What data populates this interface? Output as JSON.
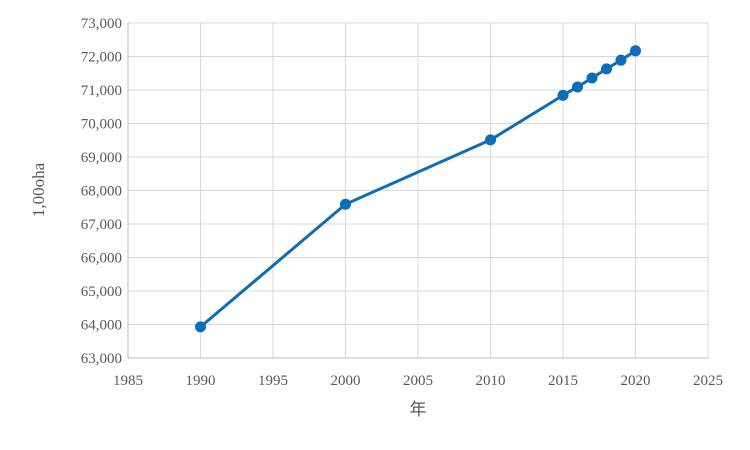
{
  "chart_data": {
    "type": "scatter",
    "title": "",
    "xlabel": "年",
    "ylabel": "1,00oha",
    "xlim": [
      1985,
      2025
    ],
    "ylim": [
      63000,
      73000
    ],
    "x_ticks": [
      "1985",
      "1990",
      "1995",
      "2000",
      "2005",
      "2010",
      "2015",
      "2020",
      "2025"
    ],
    "y_ticks": [
      "63,000",
      "64,000",
      "65,000",
      "66,000",
      "67,000",
      "68,000",
      "69,000",
      "70,000",
      "71,000",
      "72,000",
      "73,000"
    ],
    "grid": true,
    "legend": "none",
    "series": [
      {
        "color": "#0f6cb6",
        "points": [
          {
            "x": 1990,
            "y": 63930
          },
          {
            "x": 2000,
            "y": 67590
          },
          {
            "x": 2010,
            "y": 69510
          },
          {
            "x": 2015,
            "y": 70840
          },
          {
            "x": 2016,
            "y": 71090
          },
          {
            "x": 2017,
            "y": 71360
          },
          {
            "x": 2018,
            "y": 71630
          },
          {
            "x": 2019,
            "y": 71890
          },
          {
            "x": 2020,
            "y": 72170
          }
        ]
      }
    ]
  }
}
